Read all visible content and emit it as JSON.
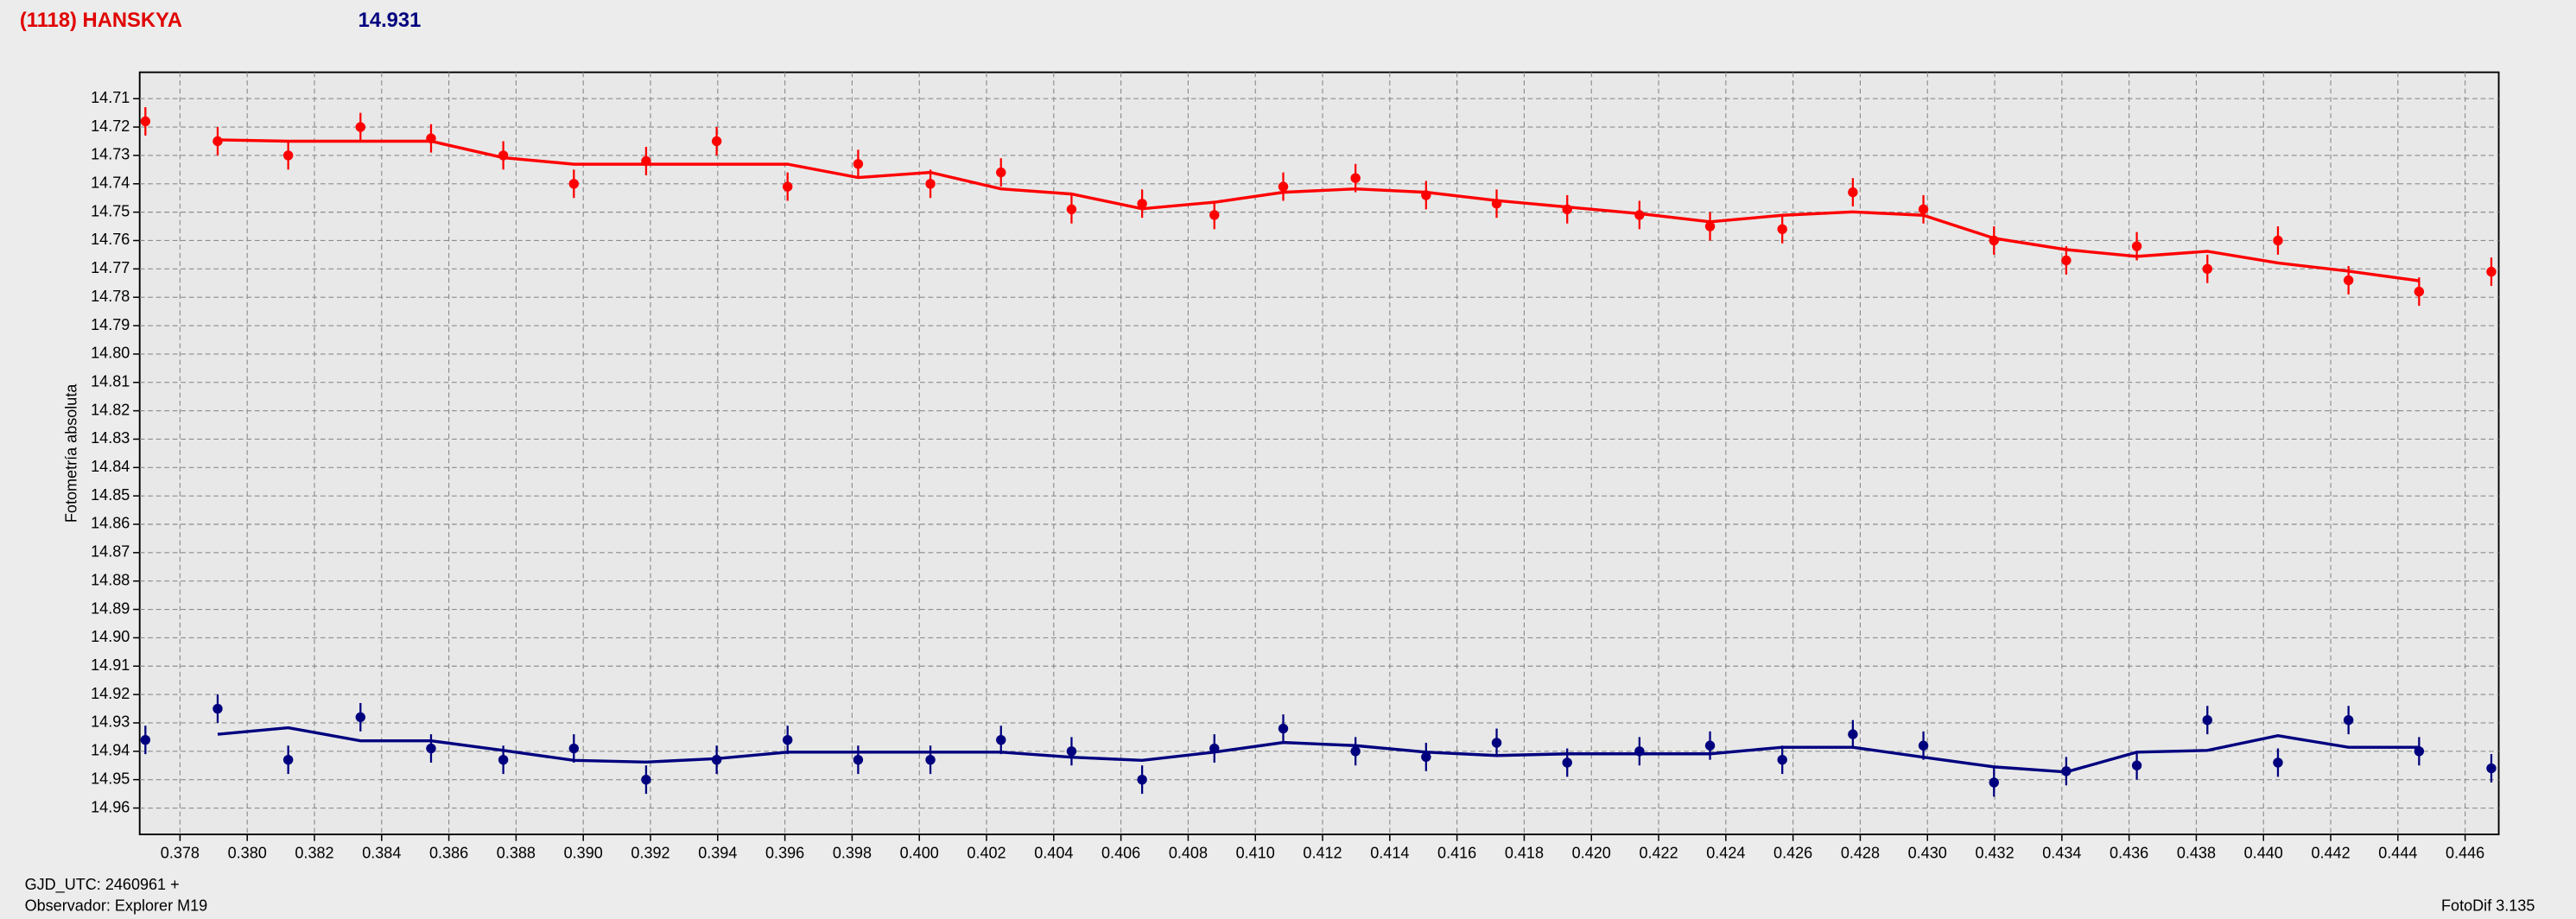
{
  "chart_data": {
    "type": "scatter",
    "title": "(1118) HANSKYA",
    "subtitle": "14.931",
    "ylabel": "Fotometría absoluta",
    "footer_left": [
      "GJD_UTC: 2460961 +",
      "Observador: Explorer M19"
    ],
    "footer_right": "FotoDif 3.135",
    "grid": true,
    "y_inverted": true,
    "xlim": [
      0.3768,
      0.447
    ],
    "ylim": [
      14.7007,
      14.9693
    ],
    "xticks": [
      0.378,
      {
        "value": 0.38,
        "label": "0.380"
      },
      0.382,
      0.384,
      0.386,
      0.388,
      {
        "value": 0.39,
        "label": "0.390"
      },
      0.392,
      0.394,
      0.396,
      0.398,
      {
        "value": 0.4,
        "label": "0.400"
      },
      0.402,
      0.404,
      0.406,
      0.408,
      {
        "value": 0.41,
        "label": "0.410"
      },
      0.412,
      0.414,
      0.416,
      0.418,
      {
        "value": 0.42,
        "label": "0.420"
      },
      0.422,
      0.424,
      0.426,
      0.428,
      {
        "value": 0.43,
        "label": "0.430"
      },
      0.432,
      0.434,
      0.436,
      0.438,
      {
        "value": 0.44,
        "label": "0.440"
      },
      0.442,
      0.444,
      0.446
    ],
    "yticks": [
      14.71,
      14.72,
      14.73,
      14.74,
      14.75,
      14.76,
      14.77,
      14.78,
      14.79,
      {
        "value": 14.8,
        "label": "14.80"
      },
      14.81,
      14.82,
      14.83,
      14.84,
      14.85,
      14.86,
      14.87,
      14.88,
      14.89,
      {
        "value": 14.9,
        "label": "14.90"
      },
      14.91,
      14.92,
      14.93,
      14.94,
      14.95,
      14.96
    ],
    "x": [
      0.37697,
      0.37912,
      0.38122,
      0.38337,
      0.38547,
      0.38762,
      0.38972,
      0.39187,
      0.39397,
      0.39608,
      0.39818,
      0.40033,
      0.40243,
      0.40453,
      0.40663,
      0.40878,
      0.41083,
      0.41298,
      0.41508,
      0.41718,
      0.41928,
      0.42143,
      0.42353,
      0.42568,
      0.42778,
      0.42988,
      0.43198,
      0.43413,
      0.43623,
      0.43833,
      0.44043,
      0.44253,
      0.44463,
      0.44678
    ],
    "series": [
      {
        "mode": "markers",
        "color": "#ff0000",
        "error": 0.005,
        "values": [
          14.718,
          14.725,
          14.73,
          14.72,
          14.724,
          14.73,
          14.74,
          14.732,
          14.725,
          14.741,
          14.733,
          14.74,
          14.736,
          14.749,
          14.747,
          14.751,
          14.741,
          14.738,
          14.744,
          14.747,
          14.749,
          14.751,
          14.755,
          14.756,
          14.743,
          14.749,
          14.76,
          14.767,
          14.762,
          14.77,
          14.76,
          14.774,
          14.778,
          14.771
        ]
      },
      {
        "mode": "line",
        "color": "#ff0000",
        "values": [
          null,
          14.7245,
          14.725,
          14.725,
          14.725,
          14.7308,
          14.7331,
          14.7331,
          14.7331,
          14.7331,
          14.7378,
          14.736,
          14.7418,
          14.7436,
          14.7488,
          14.7465,
          14.743,
          14.7418,
          14.743,
          14.7459,
          14.7482,
          14.7505,
          14.7534,
          14.7511,
          14.7499,
          14.7511,
          14.7592,
          14.7632,
          14.7656,
          14.7638,
          14.7679,
          14.7708,
          14.7742,
          null
        ]
      },
      {
        "mode": "markers",
        "color": "#00007f",
        "error": 0.005,
        "values": [
          14.936,
          14.925,
          14.943,
          14.928,
          14.939,
          14.943,
          14.939,
          14.95,
          14.943,
          14.936,
          14.943,
          14.943,
          14.936,
          14.94,
          14.95,
          14.939,
          14.932,
          14.94,
          14.942,
          14.937,
          14.944,
          14.94,
          14.938,
          14.943,
          14.934,
          14.938,
          14.951,
          14.947,
          14.945,
          14.929,
          14.944,
          14.929,
          14.94,
          14.946
        ]
      },
      {
        "mode": "line",
        "color": "#00007f",
        "values": [
          null,
          14.934,
          14.9317,
          14.9363,
          14.9363,
          14.9397,
          14.9432,
          14.9438,
          14.9426,
          14.9403,
          14.9403,
          14.9403,
          14.9403,
          14.9421,
          14.9432,
          14.9403,
          14.9369,
          14.938,
          14.9403,
          14.9415,
          14.9409,
          14.9409,
          14.9409,
          14.9386,
          14.9386,
          14.9421,
          14.9455,
          14.9473,
          14.9403,
          14.9397,
          14.9345,
          14.9386,
          14.9386,
          null
        ]
      }
    ]
  }
}
